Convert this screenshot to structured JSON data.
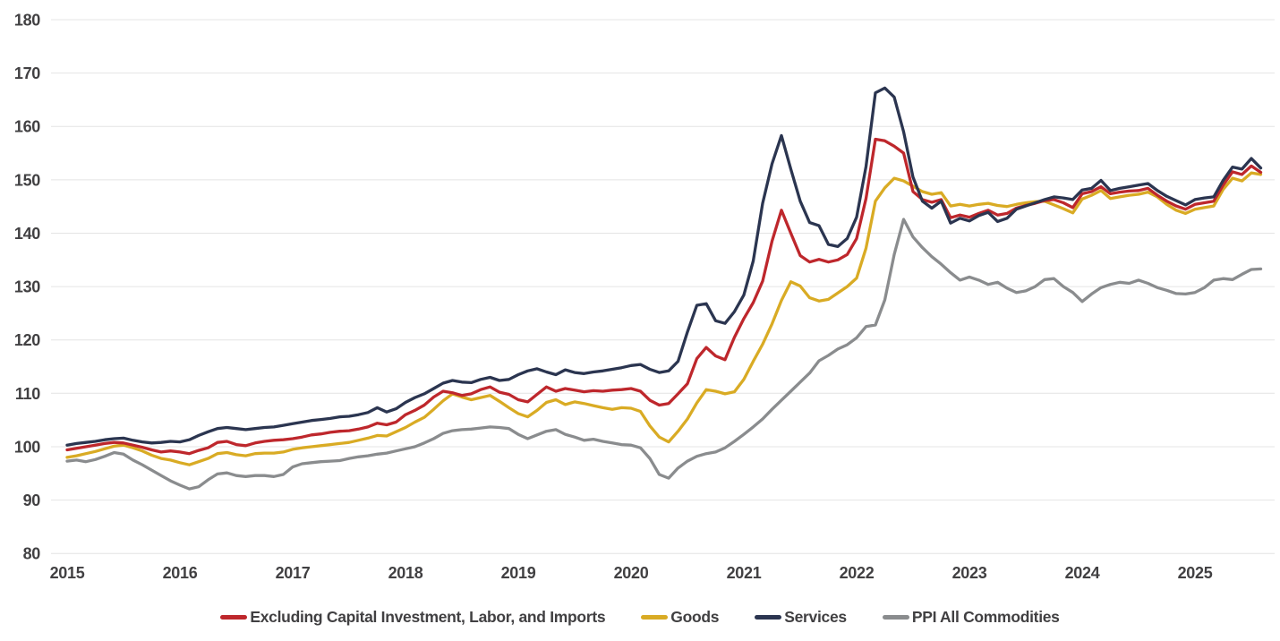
{
  "chart_data": {
    "type": "line",
    "frequency": "monthly",
    "x_start": "2015-01",
    "x_end": "2025-08",
    "x_tick_labels": [
      "2015",
      "2016",
      "2017",
      "2018",
      "2019",
      "2020",
      "2021",
      "2022",
      "2023",
      "2024",
      "2025"
    ],
    "y_ticks": [
      80,
      90,
      100,
      110,
      120,
      130,
      140,
      150,
      160,
      170,
      180
    ],
    "ylim": [
      80,
      180
    ],
    "grid": "horizontal",
    "legend_position": "bottom",
    "background_color": "#FFFFFF",
    "gridline_color": "#E4E4E4",
    "axis_label_color": "#414042",
    "series": [
      {
        "name": "Excluding Capital Investment, Labor, and Imports",
        "color": "#BE272C",
        "values": [
          99.4,
          99.7,
          100.0,
          100.3,
          100.6,
          100.8,
          100.7,
          100.3,
          99.9,
          99.4,
          99.0,
          99.2,
          99.0,
          98.7,
          99.3,
          99.8,
          100.8,
          101.0,
          100.4,
          100.2,
          100.7,
          101.0,
          101.2,
          101.3,
          101.5,
          101.8,
          102.2,
          102.4,
          102.7,
          102.9,
          103.0,
          103.3,
          103.7,
          104.4,
          104.1,
          104.6,
          106.0,
          106.8,
          107.8,
          109.3,
          110.4,
          110.1,
          109.6,
          109.9,
          110.7,
          111.2,
          110.2,
          109.8,
          108.8,
          108.4,
          109.8,
          111.2,
          110.4,
          110.9,
          110.6,
          110.3,
          110.5,
          110.4,
          110.6,
          110.7,
          110.9,
          110.4,
          108.7,
          107.8,
          108.1,
          109.9,
          111.8,
          116.5,
          118.6,
          117.0,
          116.3,
          120.5,
          124.0,
          127.0,
          131.0,
          138.5,
          144.3,
          140.0,
          135.8,
          134.6,
          135.1,
          134.6,
          135.0,
          136.0,
          139.0,
          146.5,
          157.6,
          157.3,
          156.3,
          155.0,
          147.8,
          146.3,
          145.8,
          146.3,
          142.9,
          143.4,
          143.0,
          143.7,
          144.3,
          143.4,
          143.7,
          144.7,
          145.2,
          145.6,
          146.1,
          146.3,
          145.7,
          144.8,
          147.4,
          147.8,
          148.7,
          147.4,
          147.7,
          147.9,
          148.0,
          148.4,
          147.1,
          146.0,
          145.1,
          144.5,
          145.4,
          145.7,
          146.0,
          149.0,
          151.5,
          151.0,
          152.6,
          151.4
        ]
      },
      {
        "name": "Goods",
        "color": "#D9AB24",
        "values": [
          98.0,
          98.3,
          98.7,
          99.1,
          99.6,
          100.1,
          100.3,
          99.8,
          99.2,
          98.4,
          97.8,
          97.5,
          97.0,
          96.6,
          97.2,
          97.8,
          98.7,
          98.9,
          98.5,
          98.3,
          98.7,
          98.8,
          98.8,
          99.0,
          99.5,
          99.8,
          100.0,
          100.2,
          100.4,
          100.6,
          100.8,
          101.2,
          101.6,
          102.1,
          102.0,
          102.8,
          103.6,
          104.6,
          105.5,
          107.0,
          108.6,
          109.9,
          109.3,
          108.8,
          109.2,
          109.6,
          108.5,
          107.3,
          106.2,
          105.6,
          106.8,
          108.3,
          108.8,
          107.9,
          108.4,
          108.1,
          107.7,
          107.3,
          107.0,
          107.3,
          107.2,
          106.6,
          103.9,
          101.8,
          100.9,
          102.9,
          105.2,
          108.2,
          110.7,
          110.4,
          109.9,
          110.3,
          112.6,
          116.0,
          119.2,
          123.0,
          127.4,
          130.9,
          130.1,
          127.9,
          127.3,
          127.6,
          128.8,
          130.0,
          131.6,
          137.2,
          146.0,
          148.5,
          150.3,
          149.8,
          148.8,
          147.8,
          147.3,
          147.6,
          145.1,
          145.4,
          145.1,
          145.4,
          145.6,
          145.2,
          145.0,
          145.4,
          145.7,
          145.9,
          146.0,
          145.3,
          144.6,
          143.8,
          146.4,
          147.1,
          148.0,
          146.5,
          146.8,
          147.1,
          147.3,
          147.7,
          146.8,
          145.4,
          144.3,
          143.7,
          144.5,
          144.8,
          145.1,
          148.2,
          150.3,
          149.8,
          151.3,
          151.0
        ]
      },
      {
        "name": "Services",
        "color": "#2B3550",
        "values": [
          100.3,
          100.6,
          100.8,
          101.0,
          101.3,
          101.5,
          101.6,
          101.2,
          100.9,
          100.7,
          100.8,
          101.0,
          100.9,
          101.3,
          102.1,
          102.8,
          103.4,
          103.6,
          103.4,
          103.2,
          103.4,
          103.6,
          103.7,
          104.0,
          104.3,
          104.6,
          104.9,
          105.1,
          105.3,
          105.6,
          105.7,
          106.0,
          106.4,
          107.3,
          106.5,
          107.1,
          108.3,
          109.2,
          109.9,
          110.9,
          111.9,
          112.4,
          112.1,
          112.0,
          112.6,
          113.0,
          112.4,
          112.6,
          113.5,
          114.2,
          114.6,
          114.0,
          113.5,
          114.4,
          113.9,
          113.7,
          114.0,
          114.2,
          114.5,
          114.8,
          115.2,
          115.4,
          114.5,
          113.9,
          114.2,
          116.0,
          121.5,
          126.5,
          126.8,
          123.6,
          123.1,
          125.3,
          128.4,
          134.8,
          145.6,
          153.0,
          158.3,
          152.0,
          146.0,
          142.0,
          141.4,
          137.9,
          137.5,
          139.0,
          143.0,
          152.5,
          166.3,
          167.2,
          165.5,
          159.0,
          150.5,
          146.0,
          144.7,
          146.0,
          141.9,
          142.8,
          142.3,
          143.3,
          143.9,
          142.2,
          142.8,
          144.5,
          145.1,
          145.7,
          146.3,
          146.8,
          146.6,
          146.3,
          148.1,
          148.4,
          149.9,
          148.0,
          148.4,
          148.7,
          149.0,
          149.3,
          148.0,
          146.9,
          146.1,
          145.3,
          146.3,
          146.6,
          146.8,
          149.9,
          152.4,
          152.0,
          154.0,
          152.2
        ]
      },
      {
        "name": "PPI All Commodities",
        "color": "#8A8C8E",
        "values": [
          97.3,
          97.5,
          97.2,
          97.6,
          98.2,
          98.9,
          98.6,
          97.5,
          96.6,
          95.6,
          94.6,
          93.6,
          92.8,
          92.1,
          92.5,
          93.8,
          94.9,
          95.1,
          94.6,
          94.4,
          94.6,
          94.6,
          94.4,
          94.8,
          96.2,
          96.8,
          97.0,
          97.2,
          97.3,
          97.4,
          97.8,
          98.1,
          98.3,
          98.6,
          98.8,
          99.2,
          99.6,
          100.0,
          100.7,
          101.5,
          102.5,
          103.0,
          103.2,
          103.3,
          103.5,
          103.7,
          103.6,
          103.4,
          102.3,
          101.5,
          102.2,
          102.9,
          103.2,
          102.3,
          101.8,
          101.2,
          101.4,
          101.0,
          100.7,
          100.4,
          100.3,
          99.8,
          97.8,
          94.8,
          94.1,
          96.0,
          97.3,
          98.2,
          98.7,
          99.0,
          99.8,
          101.0,
          102.3,
          103.7,
          105.2,
          107.0,
          108.7,
          110.4,
          112.1,
          113.8,
          116.1,
          117.1,
          118.3,
          119.1,
          120.4,
          122.5,
          122.8,
          127.5,
          136.0,
          142.6,
          139.3,
          137.3,
          135.6,
          134.2,
          132.6,
          131.2,
          131.8,
          131.2,
          130.4,
          130.8,
          129.7,
          128.9,
          129.2,
          130.0,
          131.3,
          131.5,
          130.0,
          128.9,
          127.2,
          128.6,
          129.8,
          130.4,
          130.8,
          130.6,
          131.2,
          130.6,
          129.8,
          129.3,
          128.7,
          128.6,
          128.9,
          129.8,
          131.2,
          131.5,
          131.3,
          132.3,
          133.2,
          133.3
        ]
      }
    ]
  },
  "legend": {
    "items": [
      {
        "label": "Excluding Capital Investment, Labor, and Imports"
      },
      {
        "label": "Goods"
      },
      {
        "label": "Services"
      },
      {
        "label": "PPI All Commodities"
      }
    ]
  }
}
